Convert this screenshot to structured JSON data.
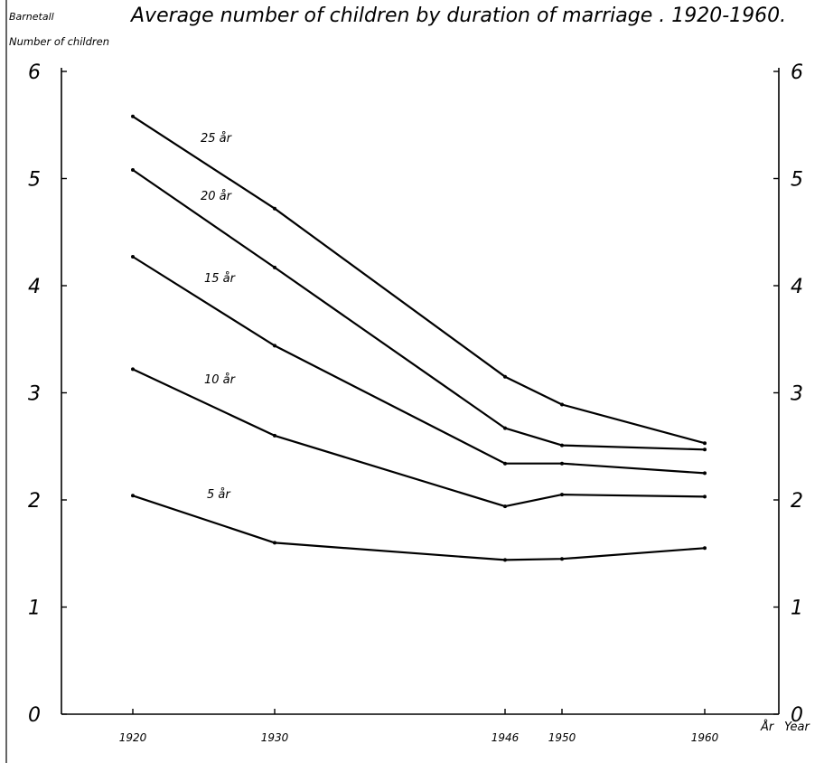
{
  "chart_data": {
    "type": "line",
    "title": "Average number of children by duration of marriage . 1920-1960.",
    "ylabel_top": "Barnetall",
    "ylabel_bottom": "Number of children",
    "xlabel_left": "År",
    "xlabel_right": "Year",
    "x": [
      1920,
      1930,
      1946,
      1950,
      1960
    ],
    "ylim": [
      0,
      6
    ],
    "yticks": [
      "0",
      "1",
      "2",
      "3",
      "4",
      "5",
      "6"
    ],
    "series": [
      {
        "name": "25 år",
        "values": [
          5.58,
          4.72,
          3.15,
          2.89,
          2.53
        ]
      },
      {
        "name": "20 år",
        "values": [
          5.08,
          4.17,
          2.67,
          2.51,
          2.47
        ]
      },
      {
        "name": "15 år",
        "values": [
          4.27,
          3.44,
          2.34,
          2.34,
          2.25
        ]
      },
      {
        "name": "10 år",
        "values": [
          3.22,
          2.6,
          1.94,
          2.05,
          2.03
        ]
      },
      {
        "name": "5 år",
        "values": [
          2.04,
          1.6,
          1.44,
          1.45,
          1.55
        ]
      }
    ],
    "grid": false,
    "legend": "inline labels"
  }
}
